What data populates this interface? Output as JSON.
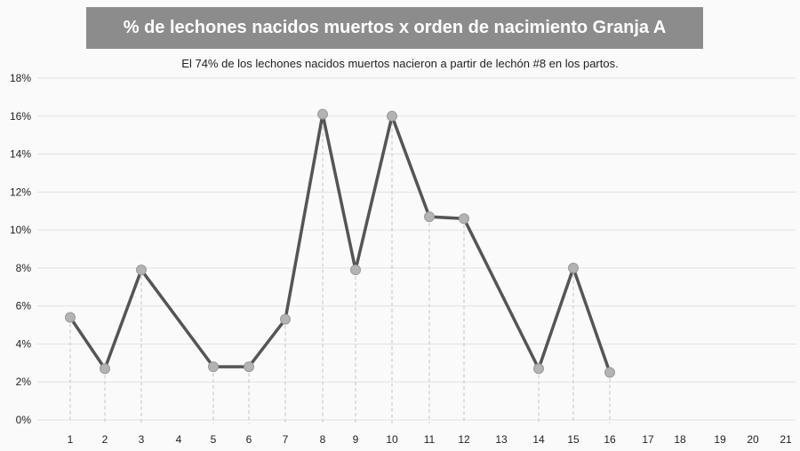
{
  "chart_data": {
    "type": "line",
    "title": "% de lechones nacidos muertos x orden de nacimiento Granja A",
    "subtitle": "El 74% de los lechones nacidos muertos nacieron a partir de lechón #8 en los partos.",
    "xlabel": "",
    "ylabel": "",
    "ylim": [
      0,
      18
    ],
    "y_ticks": [
      "0%",
      "2%",
      "4%",
      "6%",
      "8%",
      "10%",
      "12%",
      "14%",
      "16%",
      "18%"
    ],
    "y_tick_values": [
      0,
      2,
      4,
      6,
      8,
      10,
      12,
      14,
      16,
      18
    ],
    "x_ticks": [
      "1",
      "2",
      "3",
      "4",
      "5",
      "6",
      "7",
      "8",
      "9",
      "10",
      "11",
      "12",
      "13",
      "14",
      "15",
      "16",
      "17",
      "18",
      "19",
      "20",
      "21"
    ],
    "grid": true,
    "line_color": "#555555",
    "marker_color": "#b3b3b3",
    "points": [
      {
        "x": 1,
        "y": 5.4
      },
      {
        "x": 2,
        "y": 2.7
      },
      {
        "x": 3,
        "y": 7.9
      },
      {
        "x": 5,
        "y": 2.8
      },
      {
        "x": 6,
        "y": 2.8
      },
      {
        "x": 7,
        "y": 5.3
      },
      {
        "x": 8,
        "y": 16.1
      },
      {
        "x": 9,
        "y": 7.9
      },
      {
        "x": 10,
        "y": 16.0
      },
      {
        "x": 11,
        "y": 10.7
      },
      {
        "x": 12,
        "y": 10.6
      },
      {
        "x": 14,
        "y": 2.7
      },
      {
        "x": 15,
        "y": 8.0
      },
      {
        "x": 16,
        "y": 2.5
      }
    ]
  }
}
